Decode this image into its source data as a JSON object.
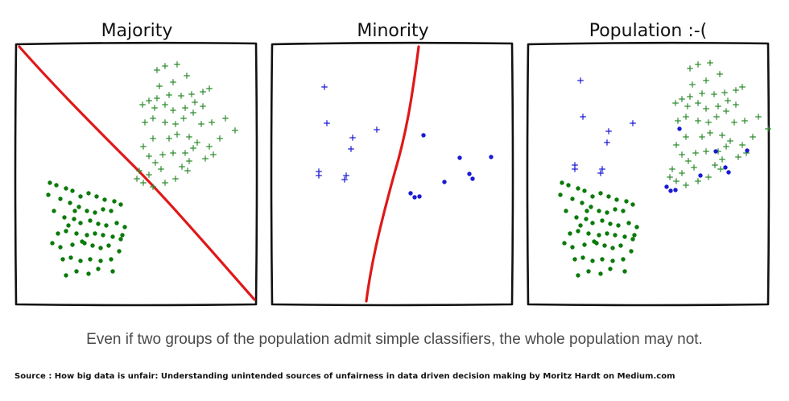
{
  "panels": [
    {
      "title": "Majority"
    },
    {
      "title": "Minority"
    },
    {
      "title": "Population :-("
    }
  ],
  "caption": "Even if two groups of the population admit simple classifiers, the whole population may not.",
  "source": "Source : How big data is unfair: Understanding unintended sources of unfairness in data driven decision making by Moritz Hardt on Medium.com",
  "colors": {
    "majority_plus": "#2e8b2e",
    "majority_dot": "#0a7a0a",
    "minority": "#1a1ad6",
    "boundary": "#e01818",
    "frame": "#111111"
  },
  "markers": {
    "majority_plus": "plus",
    "majority_dot": "dot",
    "minority_plus": "plus",
    "minority_dot": "dot"
  }
}
